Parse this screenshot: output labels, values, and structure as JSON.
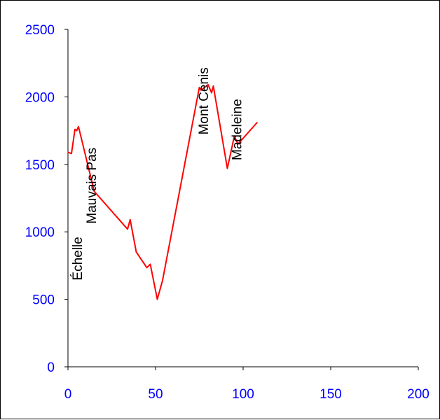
{
  "chart_data": {
    "type": "line",
    "title": "",
    "xlabel": "",
    "ylabel": "",
    "xlim": [
      0,
      200
    ],
    "ylim": [
      0,
      2500
    ],
    "x_ticks": [
      0,
      50,
      100,
      150,
      200
    ],
    "y_ticks": [
      0,
      500,
      1000,
      1500,
      2000,
      2500
    ],
    "x_tick_labels": [
      "0",
      "50",
      "100",
      "150",
      "200"
    ],
    "y_tick_labels": [
      "0",
      "500",
      "1000",
      "1500",
      "2000",
      "2500"
    ],
    "grid": false,
    "legend": "none",
    "colors": {
      "line": "#ff0000",
      "axis_text": "#0000ff",
      "axis_line": "#000000"
    },
    "series": [
      {
        "x": [
          0,
          2,
          4,
          5,
          6,
          15,
          34,
          35.5,
          39,
          45,
          47,
          51,
          54,
          75,
          76,
          80,
          82,
          83,
          91,
          95,
          96,
          97,
          108
        ],
        "y": [
          1590,
          1580,
          1760,
          1750,
          1780,
          1300,
          1020,
          1090,
          850,
          735,
          760,
          500,
          640,
          2070,
          2050,
          2090,
          2030,
          2080,
          1470,
          1710,
          1680,
          1650,
          1810
        ]
      }
    ],
    "annotations": [
      {
        "text": "Échelle",
        "x": 8,
        "y": 640
      },
      {
        "text": "Mauvais Pas",
        "x": 16,
        "y": 1060
      },
      {
        "text": "Mont Cenis",
        "x": 80,
        "y": 1720
      },
      {
        "text": "Madeleine",
        "x": 99,
        "y": 1530
      }
    ]
  }
}
